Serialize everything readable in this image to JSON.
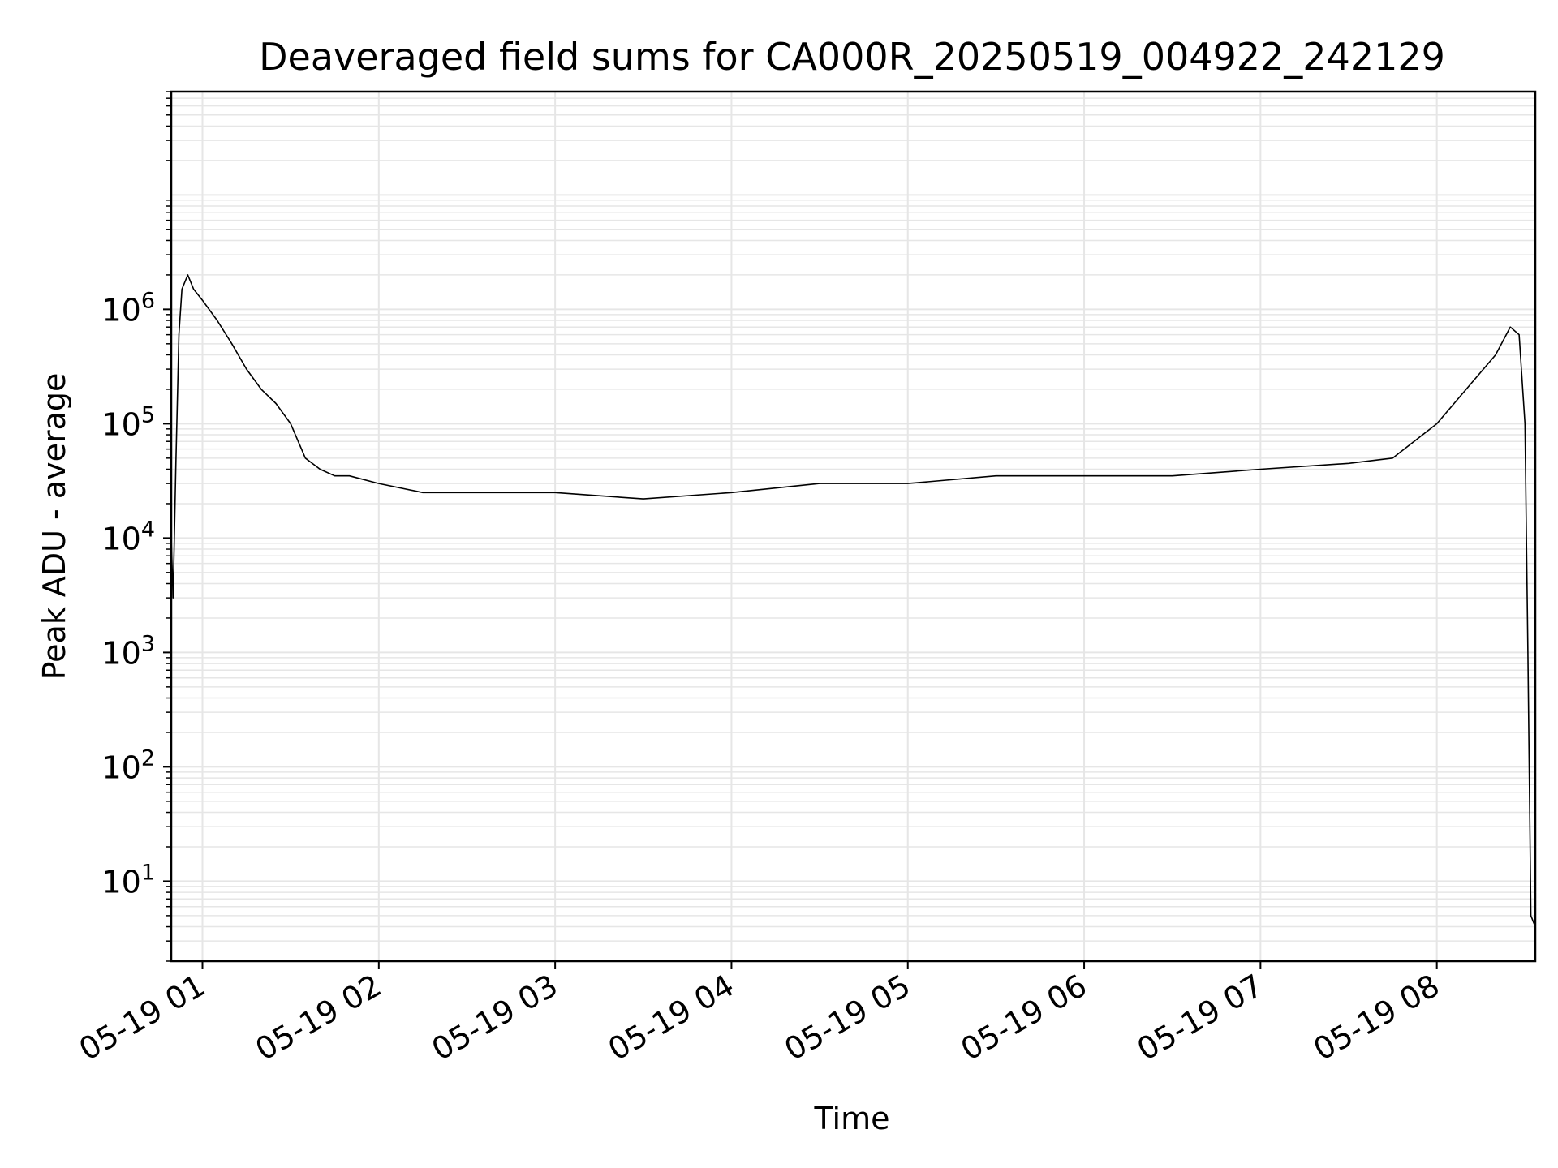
{
  "chart_data": {
    "type": "line",
    "title": "Deaveraged field sums for CA000R_20250519_004922_242129",
    "xlabel": "Time",
    "ylabel": "Peak ADU - average",
    "y_scale": "log",
    "ylim": [
      2,
      80000000
    ],
    "xlim": [
      "2025-05-19T00:49:22",
      "2025-05-19T08:33:30"
    ],
    "grid": true,
    "legend": "none",
    "line_color": "#000000",
    "grid_color": "#e6e6e6",
    "x_ticks": [
      {
        "t": "2025-05-19T01:00:00",
        "label": "05-19 01"
      },
      {
        "t": "2025-05-19T02:00:00",
        "label": "05-19 02"
      },
      {
        "t": "2025-05-19T03:00:00",
        "label": "05-19 03"
      },
      {
        "t": "2025-05-19T04:00:00",
        "label": "05-19 04"
      },
      {
        "t": "2025-05-19T05:00:00",
        "label": "05-19 05"
      },
      {
        "t": "2025-05-19T06:00:00",
        "label": "05-19 06"
      },
      {
        "t": "2025-05-19T07:00:00",
        "label": "05-19 07"
      },
      {
        "t": "2025-05-19T08:00:00",
        "label": "05-19 08"
      }
    ],
    "y_ticks": [
      {
        "value": 10,
        "base": "10",
        "exp": "1"
      },
      {
        "value": 100,
        "base": "10",
        "exp": "2"
      },
      {
        "value": 1000,
        "base": "10",
        "exp": "3"
      },
      {
        "value": 10000,
        "base": "10",
        "exp": "4"
      },
      {
        "value": 100000,
        "base": "10",
        "exp": "5"
      },
      {
        "value": 1000000,
        "base": "10",
        "exp": "6"
      }
    ],
    "series": [
      {
        "x": [
          "2025-05-19T00:49:22",
          "2025-05-19T00:50:00",
          "2025-05-19T00:51:00",
          "2025-05-19T00:52:00",
          "2025-05-19T00:53:00",
          "2025-05-19T00:55:00",
          "2025-05-19T00:57:00",
          "2025-05-19T01:00:00",
          "2025-05-19T01:05:00",
          "2025-05-19T01:10:00",
          "2025-05-19T01:15:00",
          "2025-05-19T01:20:00",
          "2025-05-19T01:25:00",
          "2025-05-19T01:30:00",
          "2025-05-19T01:35:00",
          "2025-05-19T01:40:00",
          "2025-05-19T01:45:00",
          "2025-05-19T01:50:00",
          "2025-05-19T02:00:00",
          "2025-05-19T02:15:00",
          "2025-05-19T02:30:00",
          "2025-05-19T03:00:00",
          "2025-05-19T03:30:00",
          "2025-05-19T04:00:00",
          "2025-05-19T04:30:00",
          "2025-05-19T05:00:00",
          "2025-05-19T05:30:00",
          "2025-05-19T06:00:00",
          "2025-05-19T06:30:00",
          "2025-05-19T07:00:00",
          "2025-05-19T07:30:00",
          "2025-05-19T07:45:00",
          "2025-05-19T08:00:00",
          "2025-05-19T08:10:00",
          "2025-05-19T08:20:00",
          "2025-05-19T08:25:00",
          "2025-05-19T08:28:00",
          "2025-05-19T08:30:00",
          "2025-05-19T08:31:00",
          "2025-05-19T08:32:00",
          "2025-05-19T08:33:30"
        ],
        "y": [
          10000,
          3000,
          50000,
          600000,
          1500000,
          2000000,
          1500000,
          1200000,
          800000,
          500000,
          300000,
          200000,
          150000,
          100000,
          50000,
          40000,
          35000,
          35000,
          30000,
          25000,
          25000,
          25000,
          22000,
          25000,
          30000,
          30000,
          35000,
          35000,
          35000,
          40000,
          45000,
          50000,
          100000,
          200000,
          400000,
          700000,
          600000,
          100000,
          1000,
          5,
          4
        ]
      }
    ]
  }
}
